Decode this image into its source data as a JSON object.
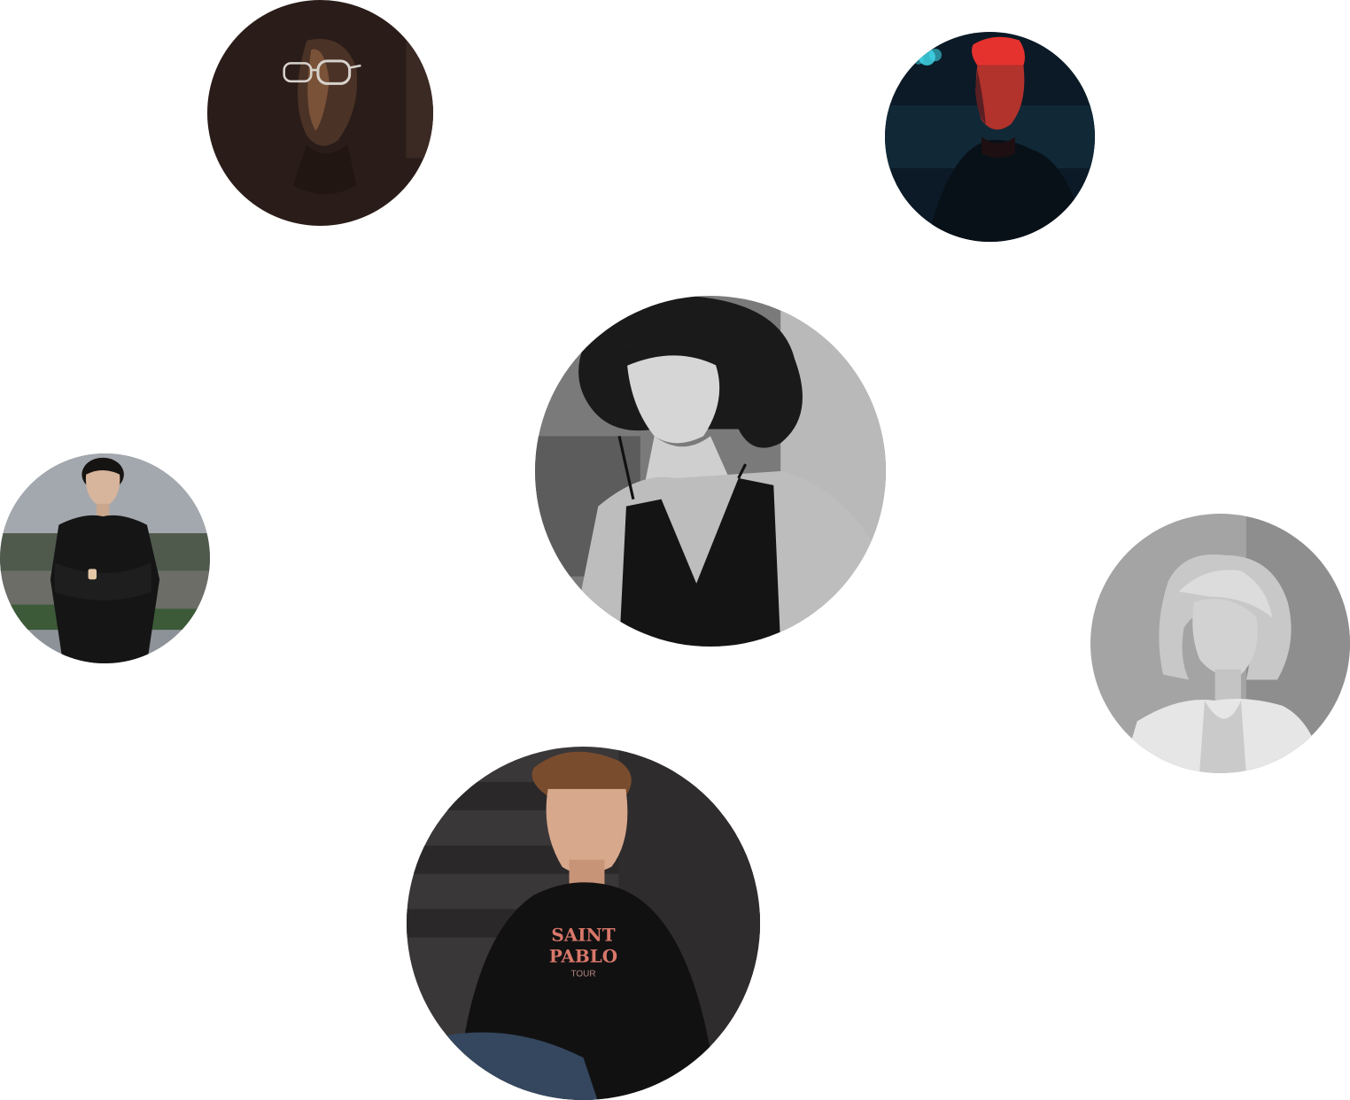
{
  "avatars": [
    {
      "id": "glasses",
      "tone": "warm dark",
      "bg": "#2a1c18"
    },
    {
      "id": "redcap",
      "tone": "neon red and blue",
      "bg": "#0b1a26"
    },
    {
      "id": "curly",
      "tone": "monochrome",
      "bg": "#7a7a7a"
    },
    {
      "id": "suit",
      "tone": "cool outdoor",
      "bg": "#8d9298"
    },
    {
      "id": "blonde",
      "tone": "monochrome light",
      "bg": "#a4a4a4"
    },
    {
      "id": "tour",
      "tone": "dark urban",
      "bg": "#3a3738"
    }
  ],
  "shirt_print": {
    "line1": "SAINT",
    "line2": "PABLO",
    "line3": "TOUR"
  },
  "colors": {
    "page_bg": "#ffffff",
    "neon_red": "#e5322e",
    "neon_cyan": "#3fd7e8",
    "shirt_print": "#d9786a"
  }
}
